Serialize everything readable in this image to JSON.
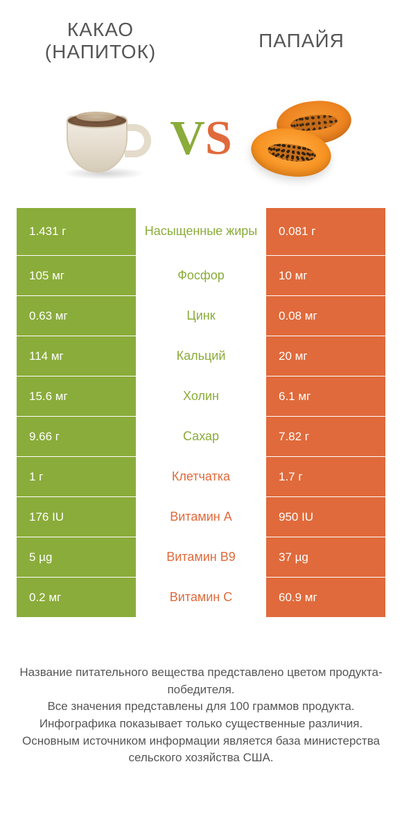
{
  "header": {
    "left_title": "КАКАО\n(НАПИТОК)",
    "right_title": "ПАПАЙЯ"
  },
  "vs": {
    "v": "V",
    "s": "S"
  },
  "colors": {
    "left": "#8aac3a",
    "right": "#e06a3b",
    "label_left": "#8aac3a",
    "label_right": "#e06a3b"
  },
  "rows": [
    {
      "nutrient": "Насыщенные жиры",
      "left": "1.431 г",
      "right": "0.081 г",
      "winner": "left"
    },
    {
      "nutrient": "Фосфор",
      "left": "105 мг",
      "right": "10 мг",
      "winner": "left"
    },
    {
      "nutrient": "Цинк",
      "left": "0.63 мг",
      "right": "0.08 мг",
      "winner": "left"
    },
    {
      "nutrient": "Кальций",
      "left": "114 мг",
      "right": "20 мг",
      "winner": "left"
    },
    {
      "nutrient": "Холин",
      "left": "15.6 мг",
      "right": "6.1 мг",
      "winner": "left"
    },
    {
      "nutrient": "Сахар",
      "left": "9.66 г",
      "right": "7.82 г",
      "winner": "left"
    },
    {
      "nutrient": "Клетчатка",
      "left": "1 г",
      "right": "1.7 г",
      "winner": "right"
    },
    {
      "nutrient": "Витамин A",
      "left": "176 IU",
      "right": "950 IU",
      "winner": "right"
    },
    {
      "nutrient": "Витамин B9",
      "left": "5 µg",
      "right": "37 µg",
      "winner": "right"
    },
    {
      "nutrient": "Витамин C",
      "left": "0.2 мг",
      "right": "60.9 мг",
      "winner": "right"
    }
  ],
  "footer": {
    "line1": "Название питательного вещества представлено цветом продукта-победителя.",
    "line2": "Все значения представлены для 100 граммов продукта.",
    "line3": "Инфографика показывает только существенные различия.",
    "line4": "Основным источником информации является база министерства сельского хозяйства США."
  }
}
